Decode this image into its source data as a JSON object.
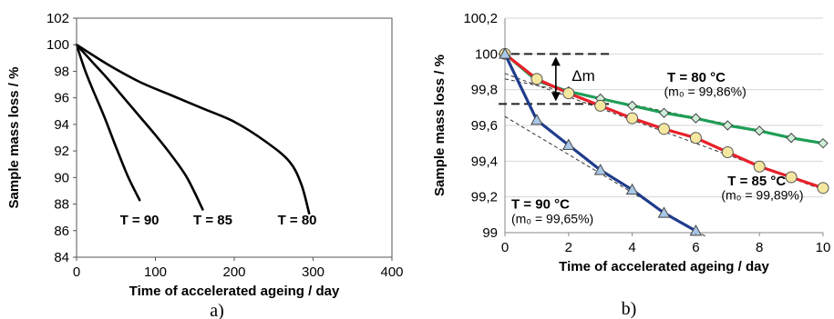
{
  "chart_data": [
    {
      "type": "line",
      "panel_label": "a)",
      "xlabel": "Time of accelerated ageing / day",
      "ylabel": "Sample mass loss / %",
      "xlim": [
        0,
        400
      ],
      "ylim": [
        84,
        102
      ],
      "xticks": [
        "0",
        "100",
        "200",
        "300",
        "400"
      ],
      "yticks": [
        "84",
        "86",
        "88",
        "90",
        "92",
        "94",
        "96",
        "98",
        "100",
        "102"
      ],
      "grid": false,
      "series": [
        {
          "name": "T = 90",
          "x": [
            0,
            10,
            20,
            35,
            50,
            65,
            80
          ],
          "y": [
            100,
            98.2,
            96.7,
            94.6,
            92.3,
            90.1,
            88.3
          ]
        },
        {
          "name": "T = 85",
          "x": [
            0,
            20,
            40,
            60,
            80,
            100,
            120,
            140,
            160
          ],
          "y": [
            100,
            98.7,
            97.4,
            96.0,
            94.6,
            93.2,
            91.7,
            90.0,
            87.6
          ]
        },
        {
          "name": "T = 80",
          "x": [
            0,
            40,
            80,
            120,
            160,
            200,
            240,
            270,
            285,
            295
          ],
          "y": [
            100,
            98.5,
            97.2,
            96.2,
            95.2,
            94.2,
            92.7,
            91.2,
            89.5,
            87.3
          ]
        }
      ],
      "annotations": [
        {
          "text": "T = 90",
          "x": 55,
          "y": 86.8
        },
        {
          "text": "T = 85",
          "x": 148,
          "y": 86.8
        },
        {
          "text": "T = 80",
          "x": 255,
          "y": 86.8
        }
      ]
    },
    {
      "type": "line",
      "panel_label": "b)",
      "xlabel": "Time of accelerated ageing / day",
      "ylabel": "Sample mass loss / %",
      "xlim": [
        0,
        10
      ],
      "ylim": [
        99,
        100.2
      ],
      "xticks": [
        "0",
        "2",
        "4",
        "6",
        "8",
        "10"
      ],
      "yticks": [
        "99",
        "99,2",
        "99,4",
        "99,6",
        "99,8",
        "100",
        "100,2"
      ],
      "grid": true,
      "series": [
        {
          "name": "T = 80 °C",
          "color": "#1f9e56",
          "marker": "diamond",
          "x": [
            0,
            1,
            2,
            3,
            4,
            5,
            6,
            7,
            8,
            9,
            10
          ],
          "y": [
            100,
            99.85,
            99.79,
            99.75,
            99.71,
            99.67,
            99.64,
            99.6,
            99.57,
            99.53,
            99.5
          ]
        },
        {
          "name": "T = 85 °C",
          "color": "#e8202a",
          "marker": "circle",
          "x": [
            0,
            1,
            2,
            3,
            4,
            5,
            6,
            7,
            8,
            9,
            10
          ],
          "y": [
            100,
            99.86,
            99.78,
            99.71,
            99.64,
            99.58,
            99.53,
            99.45,
            99.37,
            99.31,
            99.25
          ]
        },
        {
          "name": "T = 90 °C",
          "color": "#1f3c8c",
          "marker": "triangle",
          "x": [
            0,
            1,
            2,
            3,
            4,
            5,
            6
          ],
          "y": [
            100,
            99.63,
            99.49,
            99.35,
            99.24,
            99.11,
            99.01
          ]
        }
      ],
      "trendlines": [
        {
          "from": [
            0,
            99.86
          ],
          "to": [
            10,
            99.5
          ]
        },
        {
          "from": [
            0,
            99.89
          ],
          "to": [
            10,
            99.24
          ]
        },
        {
          "from": [
            0,
            99.65
          ],
          "to": [
            6.3,
            98.98
          ]
        }
      ],
      "reference_lines": [
        {
          "y": 100,
          "x_from": -0.2,
          "x_to": 3.3
        },
        {
          "y": 99.72,
          "x_from": -0.2,
          "x_to": 3.3
        }
      ],
      "annotations": [
        {
          "text": "Δm",
          "x": 2.1,
          "y": 99.875
        },
        {
          "text": "T = 80 °C",
          "x": 5.1,
          "y": 99.87
        },
        {
          "text": "(m₀ = 99,86%)",
          "x": 5.0,
          "y": 99.79
        },
        {
          "text": "T = 85 °C",
          "x": 7.0,
          "y": 99.29
        },
        {
          "text": "(m₀ = 99,89%)",
          "x": 6.8,
          "y": 99.21
        },
        {
          "text": "T = 90 °C",
          "x": 0.2,
          "y": 99.16
        },
        {
          "text": "(m₀ = 99,65%)",
          "x": 0.2,
          "y": 99.08
        }
      ]
    }
  ]
}
